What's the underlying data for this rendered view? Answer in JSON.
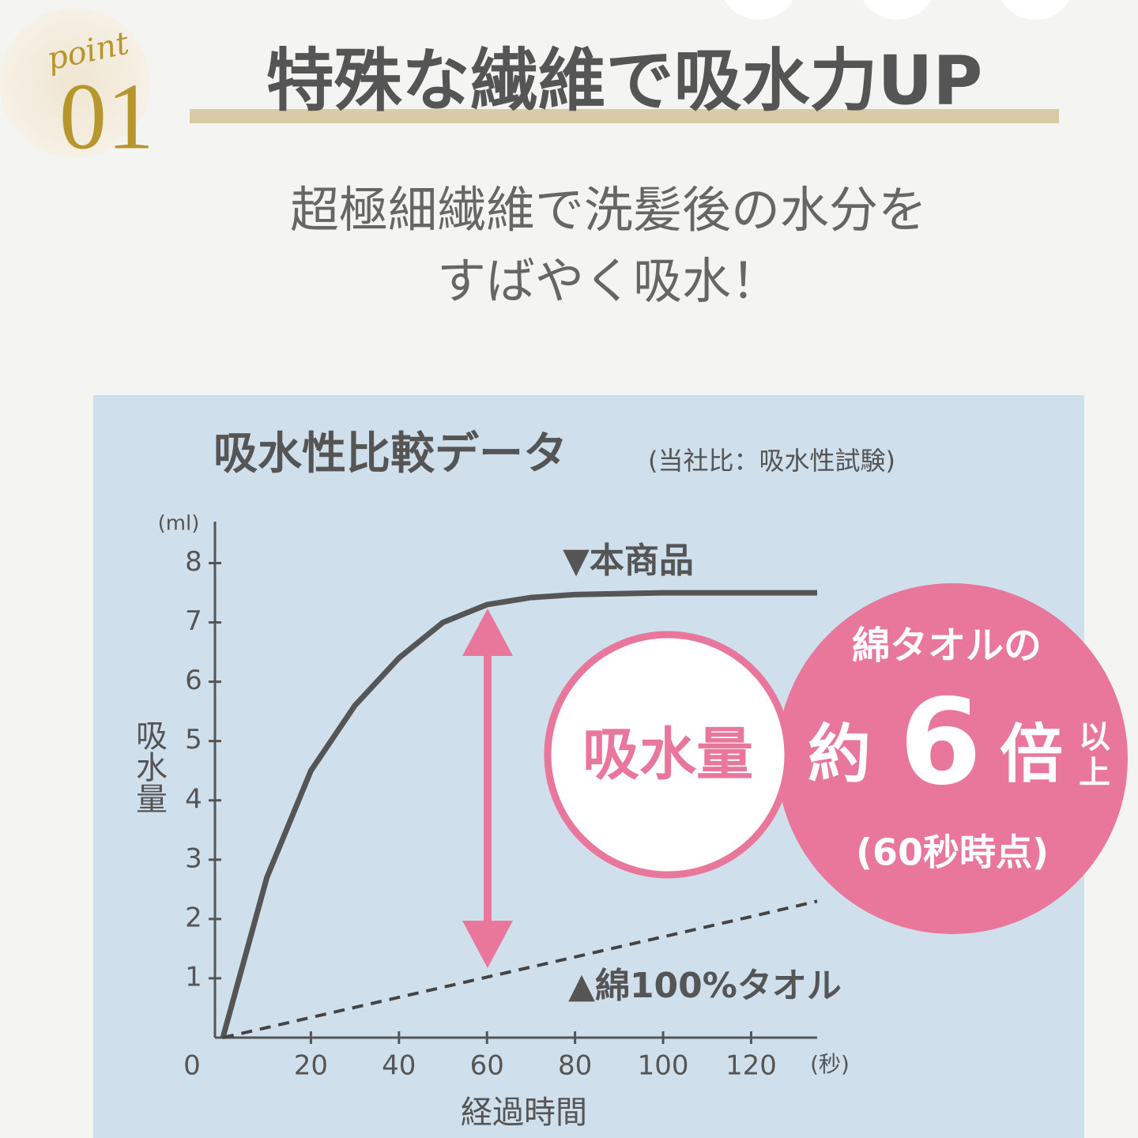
{
  "header": {
    "badge_word": "point",
    "badge_number": "01",
    "title": "特殊な繊維で吸水力UP",
    "description": [
      "超極細繊維で洗髪後の水分を",
      "すばやく吸水！"
    ]
  },
  "chart_data": {
    "type": "line",
    "title": "吸水性比較データ",
    "subtitle": "(当社比：吸水性試験)",
    "x_label": "経過時間",
    "y_label": "吸水量",
    "x_unit": "(秒)",
    "y_unit": "(ml)",
    "x": [
      0,
      10,
      20,
      30,
      40,
      50,
      60,
      70,
      80,
      100,
      120,
      135
    ],
    "series": [
      {
        "name": "▼本商品",
        "color": "#555555",
        "dashed": false,
        "values": [
          0,
          2.7,
          4.5,
          5.6,
          6.4,
          7.0,
          7.3,
          7.42,
          7.47,
          7.5,
          7.5,
          7.5
        ]
      },
      {
        "name": "▲綿100%タオル",
        "color": "#444444",
        "dashed": true,
        "values": [
          0,
          0.17,
          0.34,
          0.51,
          0.68,
          0.85,
          1.02,
          1.19,
          1.36,
          1.7,
          2.04,
          2.3
        ]
      }
    ],
    "xlim": [
      0,
      135
    ],
    "ylim": [
      0,
      8.7
    ],
    "xticks": [
      0,
      20,
      40,
      60,
      80,
      100,
      120
    ],
    "yticks": [
      1,
      2,
      3,
      4,
      5,
      6,
      7,
      8
    ],
    "annotations": {
      "circle_label": "吸水量",
      "badge_line1": "綿タオルの",
      "badge_prefix": "約",
      "badge_number": "6",
      "badge_suffix": "倍",
      "badge_small1": "以",
      "badge_small2": "上",
      "badge_note": "(60秒時点)"
    },
    "accent_color": "#e8779b"
  }
}
